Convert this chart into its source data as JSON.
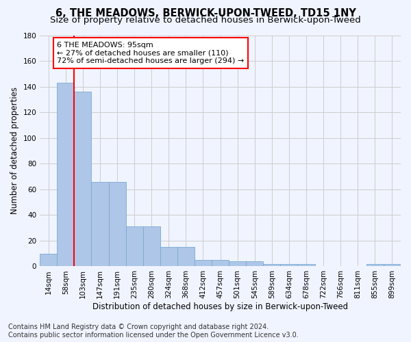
{
  "title": "6, THE MEADOWS, BERWICK-UPON-TWEED, TD15 1NY",
  "subtitle": "Size of property relative to detached houses in Berwick-upon-Tweed",
  "xlabel": "Distribution of detached houses by size in Berwick-upon-Tweed",
  "ylabel": "Number of detached properties",
  "bar_labels": [
    "14sqm",
    "58sqm",
    "103sqm",
    "147sqm",
    "191sqm",
    "235sqm",
    "280sqm",
    "324sqm",
    "368sqm",
    "412sqm",
    "457sqm",
    "501sqm",
    "545sqm",
    "589sqm",
    "634sqm",
    "678sqm",
    "722sqm",
    "766sqm",
    "811sqm",
    "855sqm",
    "899sqm"
  ],
  "bar_values": [
    10,
    143,
    136,
    66,
    66,
    31,
    31,
    15,
    15,
    5,
    5,
    4,
    4,
    2,
    2,
    2,
    0,
    0,
    0,
    2,
    2
  ],
  "bar_color": "#aec6e8",
  "bar_edge_color": "#7aaad0",
  "vline_x": 1.5,
  "vline_color": "red",
  "annotation_line1": "6 THE MEADOWS: 95sqm",
  "annotation_line2": "← 27% of detached houses are smaller (110)",
  "annotation_line3": "72% of semi-detached houses are larger (294) →",
  "annotation_box_color": "white",
  "annotation_box_edge": "red",
  "ylim": [
    0,
    180
  ],
  "yticks": [
    0,
    20,
    40,
    60,
    80,
    100,
    120,
    140,
    160,
    180
  ],
  "footer_line1": "Contains HM Land Registry data © Crown copyright and database right 2024.",
  "footer_line2": "Contains public sector information licensed under the Open Government Licence v3.0.",
  "bg_color": "#f0f4ff",
  "plot_bg_color": "#f0f4ff",
  "title_fontsize": 10.5,
  "subtitle_fontsize": 9.5,
  "label_fontsize": 8.5,
  "tick_fontsize": 7.5,
  "footer_fontsize": 7,
  "ann_fontsize": 8
}
